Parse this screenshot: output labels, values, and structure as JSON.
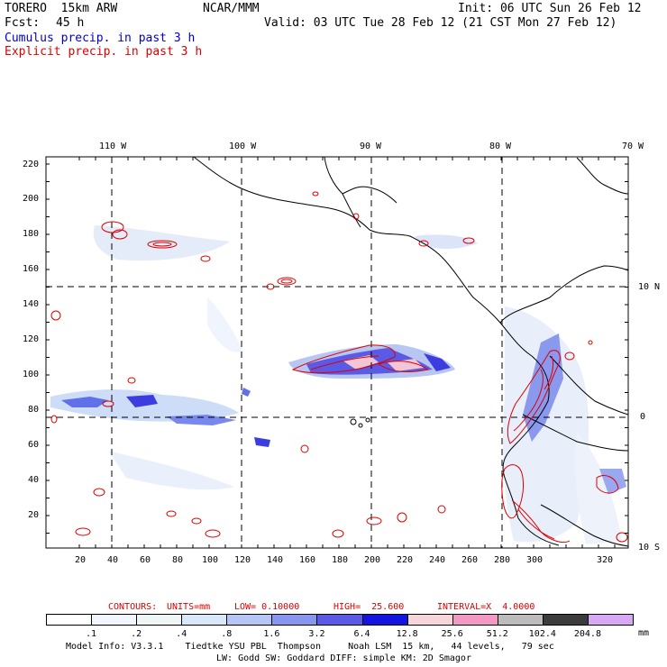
{
  "header": {
    "model_line": "TORERO  15km ARW",
    "org": "NCAR/MMM",
    "init": "Init: 06 UTC Sun 26 Feb 12",
    "fcst_label": "Fcst:",
    "fcst_value": "45 h",
    "valid": "Valid: 03 UTC Tue 28 Feb 12 (21 CST Mon 27 Feb 12)",
    "cumulus": "Cumulus precip. in past 3 h",
    "explicit": "Explicit precip. in past 3 h"
  },
  "map": {
    "lon_labels": [
      "110 W",
      "100 W",
      "90 W",
      "80 W",
      "70 W"
    ],
    "lat_labels": [
      "10 N",
      "0",
      "10 S"
    ],
    "y_ticks": [
      "220",
      "200",
      "180",
      "160",
      "140",
      "120",
      "100",
      "80",
      "60",
      "40",
      "20"
    ],
    "x_ticks": [
      "20",
      "40",
      "60",
      "80",
      "100",
      "120",
      "140",
      "160",
      "180",
      "200",
      "220",
      "240",
      "260",
      "280",
      "300",
      "320"
    ]
  },
  "contours_line": {
    "label": "CONTOURS:",
    "units": "UNITS=mm",
    "low": "LOW= 0.10000",
    "high": "HIGH=  25.600",
    "interval": "INTERVAL=X  4.0000"
  },
  "colorbar": {
    "labels": [
      ".1",
      ".2",
      ".4",
      ".8",
      "1.6",
      "3.2",
      "6.4",
      "12.8",
      "25.6",
      "51.2",
      "102.4",
      "204.8"
    ],
    "unit": "mm",
    "colors": [
      "#ffffff",
      "#f2f6ff",
      "#eef6f6",
      "#d8e8f8",
      "#b6c6f4",
      "#8896ef",
      "#5a5ae6",
      "#1414e0",
      "#f7d6da",
      "#f29ac4",
      "#bcbcbc",
      "#3c3c3c",
      "#d8a8f4"
    ]
  },
  "footer": {
    "line1": "Model Info: V3.3.1    Tiedtke YSU PBL  Thompson     Noah LSM  15 km,   44 levels,   79 sec",
    "line2": "LW: Godd SW: Goddard DIFF: simple KM: 2D Smagor"
  }
}
